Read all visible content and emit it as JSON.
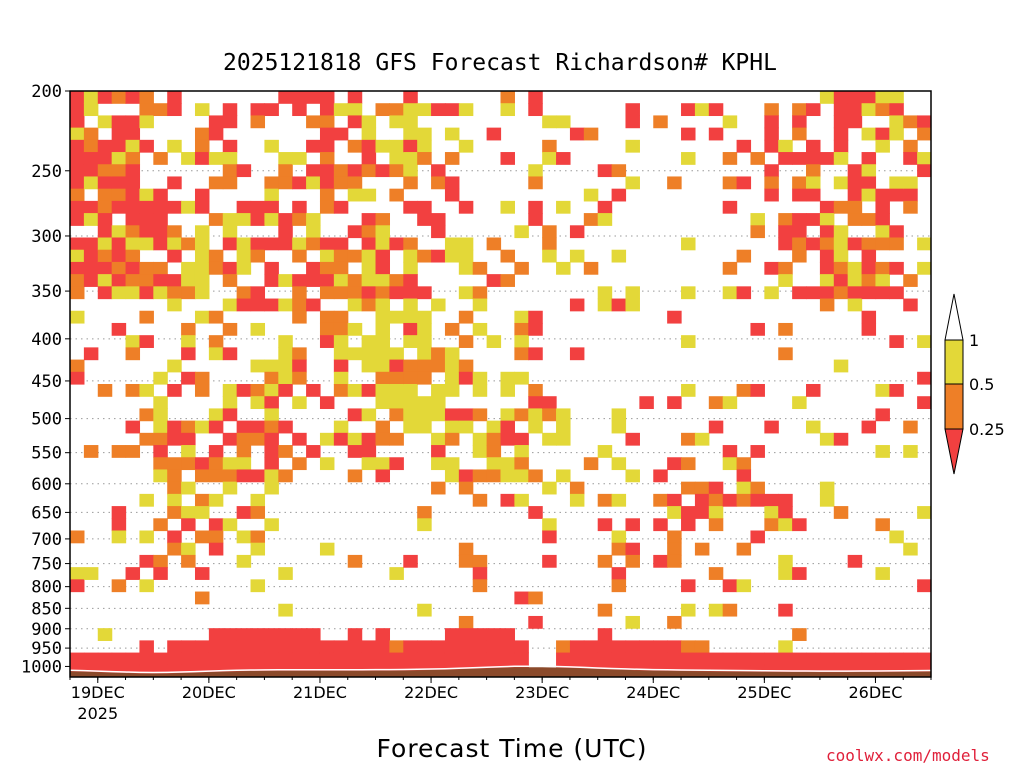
{
  "chart_data": {
    "type": "heatmap",
    "title": "2025121818 GFS Forecast Richardson# KPHL",
    "xlabel": "Forecast Time (UTC)",
    "ylabel": "",
    "y_scale": "log-pressure, inverted",
    "ylim": [
      1030,
      200
    ],
    "y_ticks": [
      200,
      250,
      300,
      350,
      400,
      450,
      500,
      550,
      600,
      650,
      700,
      750,
      800,
      850,
      900,
      950,
      1000
    ],
    "x_range": [
      "2025-12-18T18",
      "2025-12-26T12"
    ],
    "x_tick_labels": [
      "19DEC",
      "20DEC",
      "21DEC",
      "22DEC",
      "23DEC",
      "24DEC",
      "25DEC",
      "26DEC"
    ],
    "x_tick_days": [
      "2025-12-19",
      "2025-12-20",
      "2025-12-21",
      "2025-12-22",
      "2025-12-23",
      "2025-12-24",
      "2025-12-25",
      "2025-12-26"
    ],
    "x_first_year": "2025",
    "grid": "dotted horizontal lines at pressure ticks",
    "legend": "vertical colorbar, right",
    "colorbar": {
      "ticks": [
        "1",
        "0.5",
        "0.25"
      ],
      "bins": [
        {
          "range": "< 0.25",
          "color": "#f24040"
        },
        {
          "range": "0.25–0.5",
          "color": "#ee7f27"
        },
        {
          "range": "0.5–1",
          "color": "#e3d838"
        },
        {
          "range": "> 1",
          "color": "#ffffff"
        }
      ]
    },
    "ground_color": "#8b4a2b",
    "regions": [
      {
        "category": "< 0.25",
        "pattern": "nearly continuous layer from the surface up to about 900–950 hPa, peaking near 850 hPa on 20DEC and 22DEC, absent near 23DEC 00Z"
      },
      {
        "category": "< 0.25",
        "pattern": "scattered vertical streaks 700–250 hPa on 18–19DEC, narrow descending streaks 20DEC"
      },
      {
        "category": "0.25–0.5",
        "pattern": "mixed cells across 650–250 hPa, 19–23DEC"
      },
      {
        "category": "0.5–1",
        "pattern": "broad sloping band descending from 400 hPa on 21DEC to 650 hPa on 23DEC"
      },
      {
        "category": "< 0.25",
        "pattern": "large blocks 350–250 hPa on 25–26DEC"
      },
      {
        "category": "0.5–1",
        "pattern": "patches 650–550 hPa on 24–25DEC"
      }
    ]
  },
  "credit": "coolwx.com/models"
}
